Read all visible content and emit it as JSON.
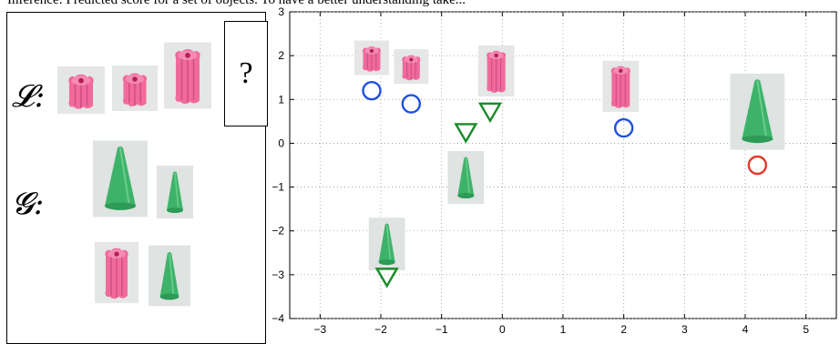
{
  "caption_fragment": "Inference: Predicted score for a set of objects. To have a better understanding take...",
  "left_panel": {
    "set_L_label": "𝓛:",
    "set_G_label": "𝓖:",
    "query_symbol": "?",
    "set_L_objects": [
      "pink-flower-block-icon",
      "pink-flower-block-icon",
      "pink-flower-block-tall-icon"
    ],
    "set_G_objects": [
      "green-cone-tall-icon",
      "green-cone-short-icon",
      "pink-flower-block-icon",
      "green-cone-short-icon"
    ]
  },
  "chart_data": {
    "type": "scatter",
    "xlim": [
      -3.5,
      5.5
    ],
    "ylim": [
      -4,
      3
    ],
    "xticks": [
      "−3",
      "−2",
      "−1",
      "0",
      "1",
      "2",
      "3",
      "4",
      "5"
    ],
    "yticks": [
      "3",
      "2",
      "1",
      "0",
      "−1",
      "−2",
      "−3",
      "−4"
    ],
    "grid": true,
    "series": [
      {
        "marker": "circle",
        "color": "#1f4fe0",
        "points": [
          [
            -2.15,
            1.2
          ],
          [
            -1.5,
            0.9
          ],
          [
            2.0,
            0.35
          ]
        ]
      },
      {
        "marker": "triangle-down",
        "color": "#1a8a2a",
        "points": [
          [
            -0.6,
            0.25
          ],
          [
            -0.2,
            0.72
          ],
          [
            -1.9,
            -3.05
          ]
        ]
      },
      {
        "marker": "circle",
        "color": "#e03a2a",
        "points": [
          [
            4.2,
            -0.5
          ]
        ]
      }
    ],
    "object_thumbnails": [
      {
        "kind": "pink-short",
        "x": -2.15,
        "y": 1.95
      },
      {
        "kind": "pink-short",
        "x": -1.5,
        "y": 1.75
      },
      {
        "kind": "pink-tall",
        "x": -0.1,
        "y": 1.65
      },
      {
        "kind": "pink-tall",
        "x": 1.95,
        "y": 1.3
      },
      {
        "kind": "green-tall",
        "x": 4.2,
        "y": 0.72
      },
      {
        "kind": "green-short",
        "x": -0.6,
        "y": -0.78
      },
      {
        "kind": "green-short",
        "x": -1.9,
        "y": -2.3
      }
    ]
  }
}
